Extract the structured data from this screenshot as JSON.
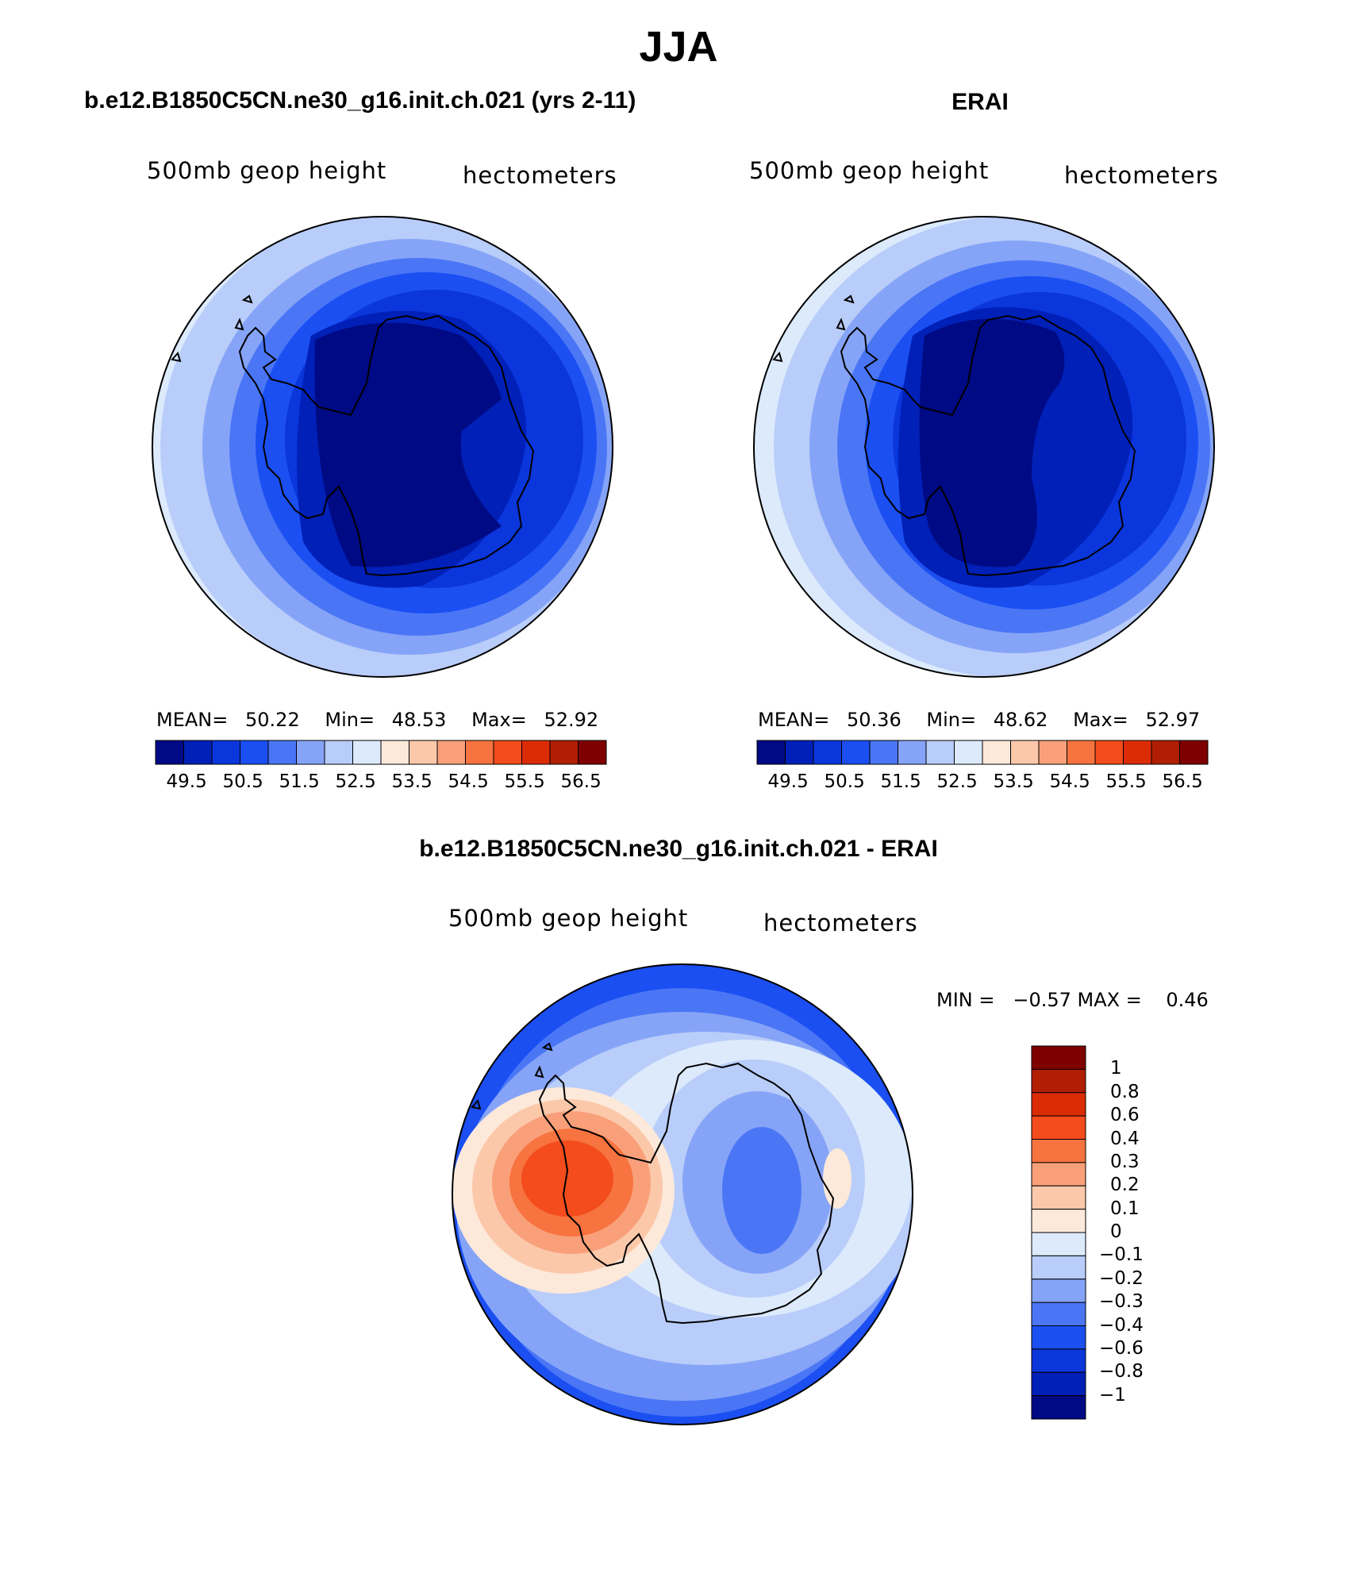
{
  "page": {
    "title": "JJA"
  },
  "panels": [
    {
      "id": "model",
      "title": "b.e12.B1850C5CN.ne30_g16.init.ch.021 (yrs 2-11)",
      "left_label": "500mb geop height",
      "right_label": "hectometers",
      "stats": {
        "mean_label": "MEAN=",
        "mean": "50.22",
        "min_label": "Min=",
        "min": "48.53",
        "max_label": "Max=",
        "max": "52.92"
      }
    },
    {
      "id": "obs",
      "title": "ERAI",
      "left_label": "500mb geop height",
      "right_label": "hectometers",
      "stats": {
        "mean_label": "MEAN=",
        "mean": "50.36",
        "min_label": "Min=",
        "min": "48.62",
        "max_label": "Max=",
        "max": "52.97"
      }
    },
    {
      "id": "diff",
      "title": "b.e12.B1850C5CN.ne30_g16.init.ch.021 - ERAI",
      "left_label": "500mb geop height",
      "right_label": "hectometers",
      "stats_text": "MIN =   −0.57 MAX =    0.46"
    }
  ],
  "colorbars": {
    "horizontal": {
      "colors": [
        "#000a84",
        "#0020b8",
        "#0a36dc",
        "#1b4ff2",
        "#4a76f6",
        "#86a4f7",
        "#b9cdfa",
        "#dceafc",
        "#fde9da",
        "#fcc8aa",
        "#f9a07a",
        "#f7733f",
        "#f44c1c",
        "#dc2c06",
        "#b21e04",
        "#7f0000"
      ],
      "labels": [
        "49.5",
        "50.5",
        "51.5",
        "52.5",
        "53.5",
        "54.5",
        "55.5",
        "56.5"
      ]
    },
    "vertical": {
      "colors_top_to_bottom": [
        "#7f0000",
        "#b21e04",
        "#dc2c06",
        "#f44c1c",
        "#f7733f",
        "#f9a07a",
        "#fcc8aa",
        "#fde9da",
        "#dceafc",
        "#b9cdfa",
        "#86a4f7",
        "#4a76f6",
        "#1b4ff2",
        "#0a36dc",
        "#0020b8",
        "#000a84"
      ],
      "labels": [
        "1",
        "0.8",
        "0.6",
        "0.4",
        "0.3",
        "0.2",
        "0.1",
        "0",
        "−0.1",
        "−0.2",
        "−0.3",
        "−0.4",
        "−0.6",
        "−0.8",
        "−1"
      ]
    }
  }
}
